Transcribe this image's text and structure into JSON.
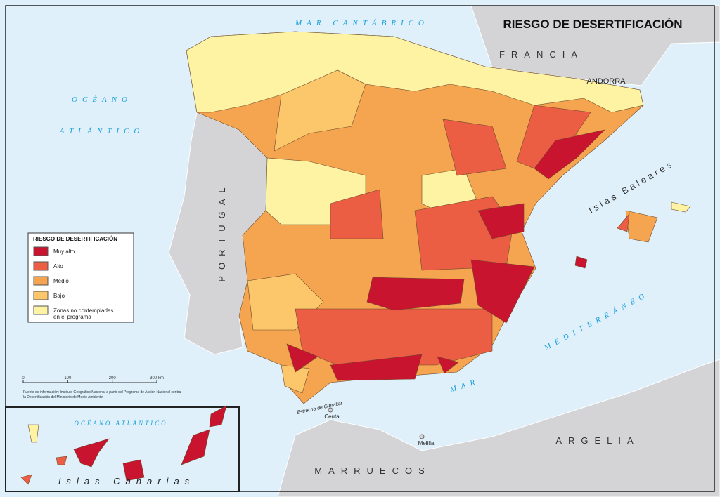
{
  "title": "RIESGO DE DESERTIFICACIÓN",
  "labels": {
    "mar_cantabrico": "MAR CANTÁBRICO",
    "oceano": "OCÉANO",
    "atlantico": "ATLÁNTICO",
    "francia": "FRANCIA",
    "andorra": "ANDORRA",
    "portugal": "PORTUGAL",
    "islas_baleares": "Islas Baleares",
    "mar_mediterraneo_1": "MEDITERRÁNEO",
    "mar_mediterraneo_2": "MAR",
    "marruecos": "MARRUECOS",
    "argelia": "ARGELIA",
    "ceuta": "Ceuta",
    "melilla": "Melilla",
    "estrecho": "Estrecho de Gibraltar",
    "oceano_canarias": "OCÉANO ATLÁNTICO",
    "islas_canarias": "Islas Canarias"
  },
  "legend": {
    "title": "RIESGO DE DESERTIFICACIÓN",
    "items": [
      {
        "label": [
          "Muy alto"
        ],
        "color": "#c8142f"
      },
      {
        "label": [
          "Alto"
        ],
        "color": "#eb5e44"
      },
      {
        "label": [
          "Medio"
        ],
        "color": "#f5a450"
      },
      {
        "label": [
          "Bajo"
        ],
        "color": "#fcc76a"
      },
      {
        "label": [
          "Zonas no contempladas",
          "en el programa"
        ],
        "color": "#fdf3a2"
      }
    ]
  },
  "scale": {
    "ticks": [
      0,
      100,
      200,
      {
        "value": 300,
        "label": "300 km"
      }
    ]
  },
  "source": [
    "Fuente de información: Instituto Geográfico Nacional a partir del Programa de Acción Nacional contra",
    "la Desertificación del Ministerio de Medio Ambiente"
  ]
}
